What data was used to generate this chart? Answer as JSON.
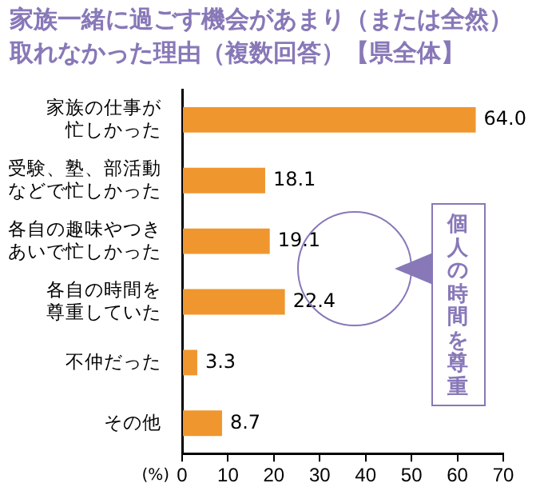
{
  "chart_data": {
    "type": "bar",
    "orientation": "horizontal",
    "title": "家族一緒に過ごす機会があまり（または全然）取れなかった理由（複数回答）【県全体】",
    "xlabel": "(%)",
    "categories": [
      "家族の仕事が忙しかった",
      "受験、塾、部活動などで忙しかった",
      "各自の趣味やつきあいで忙しかった",
      "各自の時間を尊重していた",
      "不仲だった",
      "その他"
    ],
    "values": [
      64.0,
      18.1,
      19.1,
      22.4,
      3.3,
      8.7
    ],
    "value_labels": [
      "64.0",
      "18.1",
      "19.1",
      "22.4",
      "3.3",
      "8.7"
    ],
    "color": "#f0962e",
    "xlim": [
      0,
      70
    ],
    "xticks": [
      0,
      10,
      20,
      30,
      40,
      50,
      60,
      70
    ],
    "grid": false,
    "legend": false,
    "annotations": [
      "個人の時間を尊重"
    ]
  }
}
